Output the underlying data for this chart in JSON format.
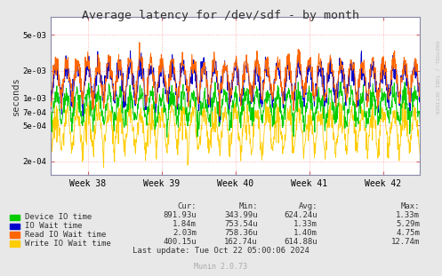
{
  "title": "Average latency for /dev/sdf - by month",
  "ylabel": "seconds",
  "background_color": "#e8e8e8",
  "plot_bg_color": "#ffffff",
  "grid_color_major": "#ff9999",
  "grid_color_minor": "#cccccc",
  "yticks": [
    0.0002,
    0.0005,
    0.0007,
    0.001,
    0.002,
    0.005
  ],
  "ytick_labels": [
    "2e-04",
    "5e-04",
    "7e-04",
    "1e-03",
    "2e-03",
    "5e-03"
  ],
  "ymin": 0.00014,
  "ymax": 0.008,
  "xweek_labels": [
    "Week 38",
    "Week 39",
    "Week 40",
    "Week 41",
    "Week 42"
  ],
  "line_colors": {
    "device_io": "#00cc00",
    "io_wait": "#0000cc",
    "read_io_wait": "#ff6600",
    "write_io_wait": "#ffcc00"
  },
  "legend": [
    {
      "label": "Device IO time",
      "color": "#00cc00"
    },
    {
      "label": "IO Wait time",
      "color": "#0000cc"
    },
    {
      "label": "Read IO Wait time",
      "color": "#ff6600"
    },
    {
      "label": "Write IO Wait time",
      "color": "#ffcc00"
    }
  ],
  "legend_table": {
    "headers": [
      "Cur:",
      "Min:",
      "Avg:",
      "Max:"
    ],
    "rows": [
      [
        "891.93u",
        "343.99u",
        "624.24u",
        "1.33m"
      ],
      [
        "1.84m",
        "753.54u",
        "1.33m",
        "5.29m"
      ],
      [
        "2.03m",
        "758.36u",
        "1.40m",
        "4.75m"
      ],
      [
        "400.15u",
        "162.74u",
        "614.88u",
        "12.74m"
      ]
    ]
  },
  "last_update": "Last update: Tue Oct 22 05:00:06 2024",
  "munin_version": "Munin 2.0.73",
  "rrdtool_label": "RRDTOOL / TOBI OETIKER",
  "n_cycles": 35
}
